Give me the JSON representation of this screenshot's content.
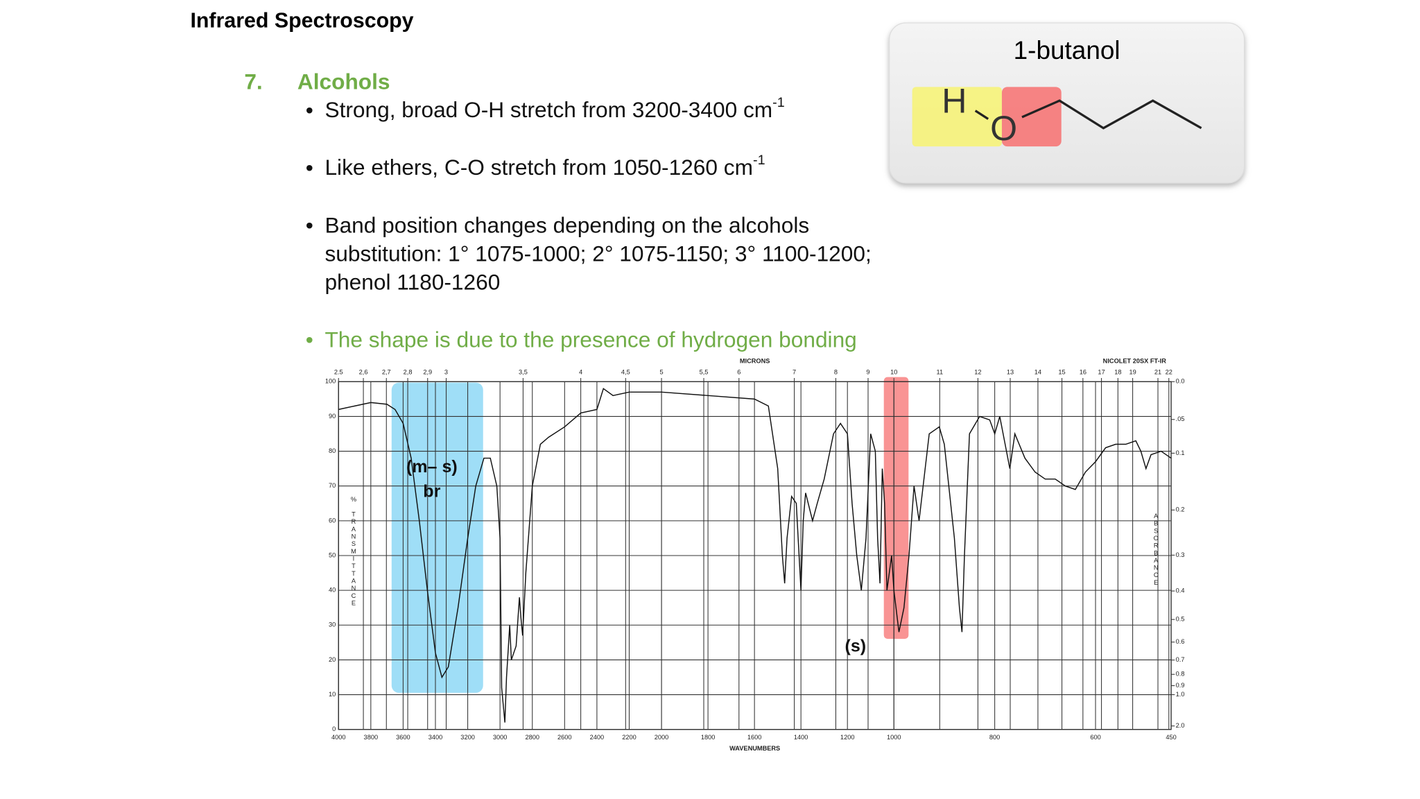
{
  "slide": {
    "title": "Infrared Spectroscopy",
    "section_number": "7.",
    "section_title": "Alcohols",
    "bullets": [
      {
        "text": "Strong, broad O-H stretch from 3200-3400 cm",
        "sup": "-1"
      },
      {
        "text": "Like ethers, C-O stretch from 1050-1260 cm",
        "sup": "-1"
      },
      {
        "lines": [
          "Band position changes depending on the alcohols",
          "substitution: 1° 1075-1000; 2° 1075-1150; 3° 1100-1200;",
          "phenol 1180-1260"
        ]
      },
      {
        "text": "The shape is due to the presence of hydrogen bonding"
      }
    ],
    "molecule": {
      "label": "1-butanol",
      "atoms": [
        "H",
        "O"
      ]
    }
  },
  "chart_data": {
    "type": "line",
    "instrument": "NICOLET 20SX FT-IR",
    "x_label": "WAVENUMBERS",
    "x2_label": "MICRONS",
    "y_label": "% TRANSMITTANCE",
    "y2_label": "ABSORBANCE",
    "annotations": [
      "(m– s)",
      "br",
      "(s)"
    ],
    "x": [
      4000,
      3900,
      3800,
      3700,
      3650,
      3600,
      3550,
      3500,
      3450,
      3400,
      3360,
      3320,
      3260,
      3200,
      3150,
      3100,
      3060,
      3020,
      3000,
      2990,
      2970,
      2960,
      2940,
      2930,
      2900,
      2880,
      2870,
      2860,
      2840,
      2800,
      2750,
      2700,
      2600,
      2500,
      2400,
      2360,
      2300,
      2200,
      2000,
      1800,
      1600,
      1540,
      1500,
      1480,
      1470,
      1460,
      1440,
      1420,
      1400,
      1390,
      1380,
      1350,
      1330,
      1300,
      1260,
      1230,
      1200,
      1180,
      1160,
      1140,
      1120,
      1100,
      1080,
      1070,
      1060,
      1050,
      1040,
      1030,
      1010,
      1000,
      990,
      980,
      970,
      960,
      950,
      930,
      910,
      900,
      880,
      870,
      865,
      860,
      850,
      830,
      810,
      800,
      790,
      770,
      760,
      740,
      720,
      700,
      680,
      660,
      640,
      620,
      600,
      580,
      560,
      540,
      520,
      510,
      500,
      490,
      470,
      450
    ],
    "series": [
      {
        "color": "#111111",
        "values": [
          92,
          93,
          94,
          93.5,
          92,
          88,
          78,
          60,
          40,
          22,
          15,
          18,
          35,
          55,
          70,
          78,
          78,
          70,
          55,
          12,
          2,
          15,
          30,
          20,
          24,
          38,
          32,
          27,
          45,
          70,
          82,
          84,
          87,
          91,
          92,
          98,
          96,
          97,
          97,
          96,
          95,
          93,
          75,
          50,
          42,
          55,
          67,
          65,
          40,
          60,
          68,
          60,
          65,
          72,
          85,
          88,
          85,
          65,
          50,
          40,
          55,
          85,
          80,
          55,
          42,
          75,
          65,
          40,
          50,
          40,
          28,
          35,
          50,
          70,
          60,
          85,
          87,
          82,
          55,
          35,
          28,
          50,
          85,
          90,
          89,
          85,
          90,
          75,
          85,
          78,
          74,
          72,
          72,
          70,
          69,
          74,
          77,
          81,
          82,
          82,
          83,
          80,
          75,
          79,
          80,
          78
        ]
      }
    ],
    "xlim": [
      4000,
      450
    ],
    "xscale_breaks": [
      2000,
      1000
    ],
    "xticks": [
      4000,
      3800,
      3600,
      3400,
      3200,
      3000,
      2800,
      2600,
      2400,
      2200,
      2000,
      1800,
      1600,
      1400,
      1200,
      1000,
      800,
      600,
      450
    ],
    "ylim": [
      0,
      100
    ],
    "yticks": [
      0,
      10,
      20,
      30,
      40,
      50,
      60,
      70,
      80,
      90,
      100
    ],
    "x2ticks": [
      2.5,
      {
        "value": 2.6,
        "label": "2,6"
      },
      {
        "value": 2.7,
        "label": "2,7"
      },
      {
        "value": 2.8,
        "label": "2,8"
      },
      {
        "value": 2.9,
        "label": "2,9"
      },
      3,
      {
        "value": 3.5,
        "label": "3,5"
      },
      4,
      {
        "value": 4.5,
        "label": "4,5"
      },
      5,
      {
        "value": 5.5,
        "label": "5,5"
      },
      6,
      7,
      8,
      9,
      10,
      11,
      12,
      13,
      14,
      15,
      16,
      17,
      18,
      19,
      21,
      22
    ],
    "y2ticks": [
      {
        "value": 0,
        "label": "0.0"
      },
      {
        "value": 0.05,
        "label": ".05"
      },
      0.1,
      0.2,
      0.3,
      0.4,
      0.5,
      0.6,
      0.7,
      0.8,
      0.9,
      {
        "value": 1,
        "label": "1.0"
      },
      {
        "value": 2,
        "label": "2.0"
      }
    ],
    "grid": true
  }
}
